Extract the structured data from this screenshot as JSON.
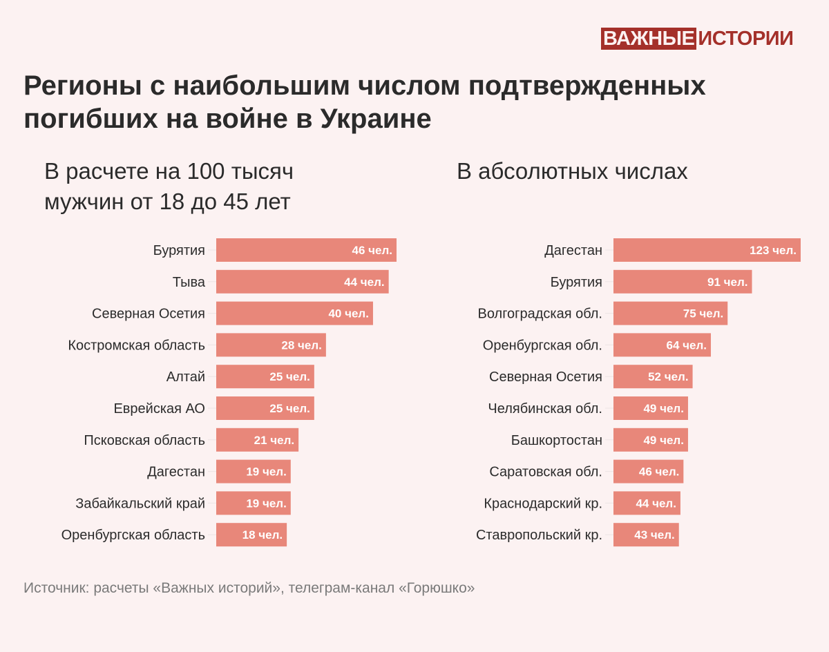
{
  "logo": {
    "part1": "ВАЖНЫЕ",
    "part2": "ИСТОРИИ"
  },
  "colors": {
    "bar": "#e8877a",
    "logo": "#a4302a",
    "background": "#fcf2f2",
    "label": "#2b2b2b",
    "bar_text": "#ffffff",
    "source": "#7a7a7a"
  },
  "title_line1": "Регионы с наибольшим числом подтвержденных",
  "title_line2": "погибших на войне в Украине",
  "source": "Источник: расчеты «Важных историй», телеграм-канал «Горюшко»",
  "chart_data": [
    {
      "type": "bar",
      "orientation": "horizontal",
      "title": "В расчете на 100 тысяч мужчин от 18 до 45 лет",
      "title_line1": "В расчете на 100 тысяч",
      "title_line2": "мужчин от 18 до 45 лет",
      "unit_suffix": " чел.",
      "categories": [
        "Бурятия",
        "Тыва",
        "Северная Осетия",
        "Костромская область",
        "Алтай",
        "Еврейская АО",
        "Псковская область",
        "Дагестан",
        "Забайкальский край",
        "Оренбургская область"
      ],
      "values": [
        46,
        44,
        40,
        28,
        25,
        25,
        21,
        19,
        19,
        18
      ],
      "xlim": [
        0,
        46
      ],
      "grid": false,
      "legend": "none"
    },
    {
      "type": "bar",
      "orientation": "horizontal",
      "title": "В абсолютных числах",
      "title_line1": "В абсолютных числах",
      "unit_suffix": " чел.",
      "categories": [
        "Дагестан",
        "Бурятия",
        "Волгоградская обл.",
        "Оренбургская обл.",
        "Северная Осетия",
        "Челябинская обл.",
        "Башкортостан",
        "Саратовская обл.",
        "Краснодарский кр.",
        "Ставропольский кр."
      ],
      "values": [
        123,
        91,
        75,
        64,
        52,
        49,
        49,
        46,
        44,
        43
      ],
      "xlim": [
        0,
        123
      ],
      "grid": false,
      "legend": "none"
    }
  ]
}
